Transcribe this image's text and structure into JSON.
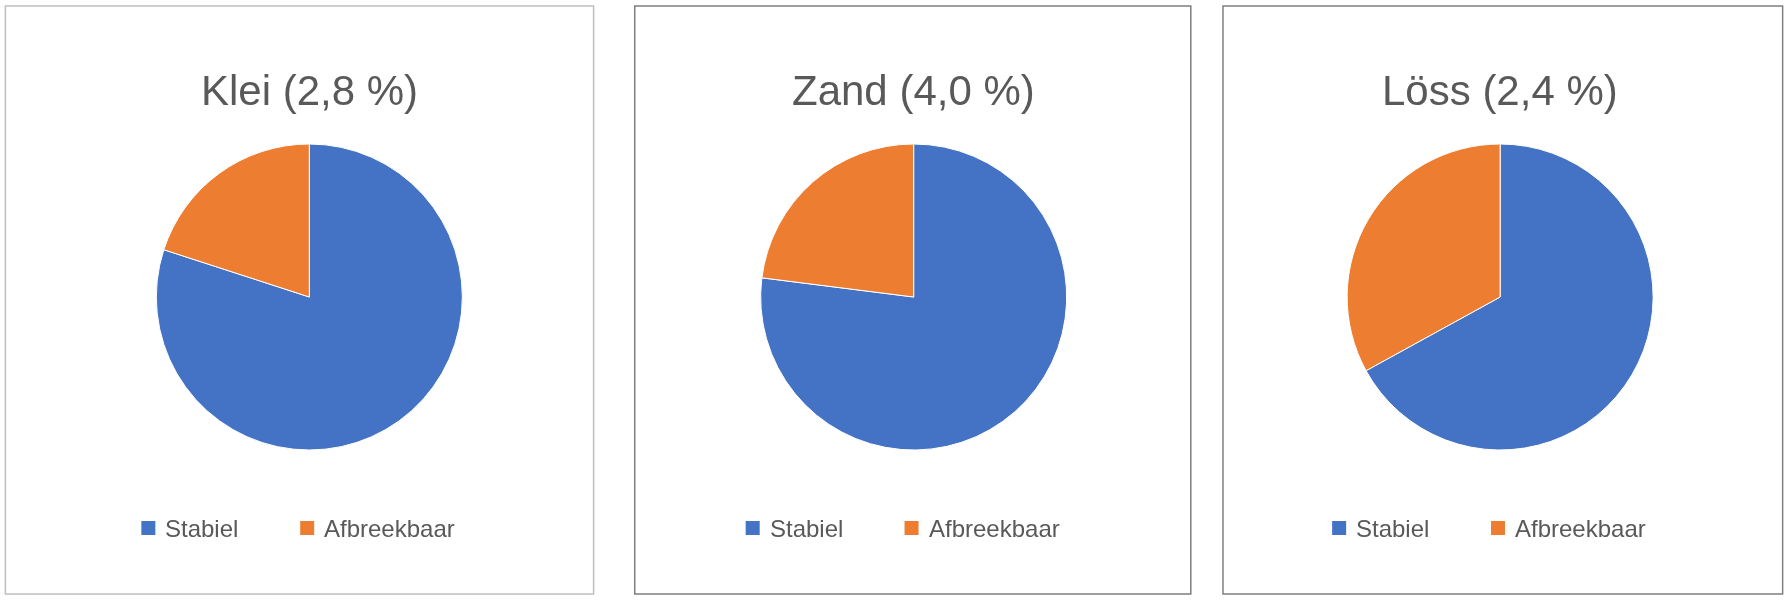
{
  "chart_data": [
    {
      "type": "pie",
      "title": "Klei (2,8 %)",
      "categories": [
        "Stabiel",
        "Afbreekbaar"
      ],
      "values": [
        80,
        20
      ],
      "colors": [
        "#4472c4",
        "#ed7d31"
      ],
      "legend": "bottom"
    },
    {
      "type": "pie",
      "title": "Zand (4,0 %)",
      "categories": [
        "Stabiel",
        "Afbreekbaar"
      ],
      "values": [
        77,
        23
      ],
      "colors": [
        "#4472c4",
        "#ed7d31"
      ],
      "legend": "bottom"
    },
    {
      "type": "pie",
      "title": "Löss (2,4 %)",
      "categories": [
        "Stabiel",
        "Afbreekbaar"
      ],
      "values": [
        67,
        33
      ],
      "colors": [
        "#4472c4",
        "#ed7d31"
      ],
      "legend": "bottom"
    }
  ]
}
